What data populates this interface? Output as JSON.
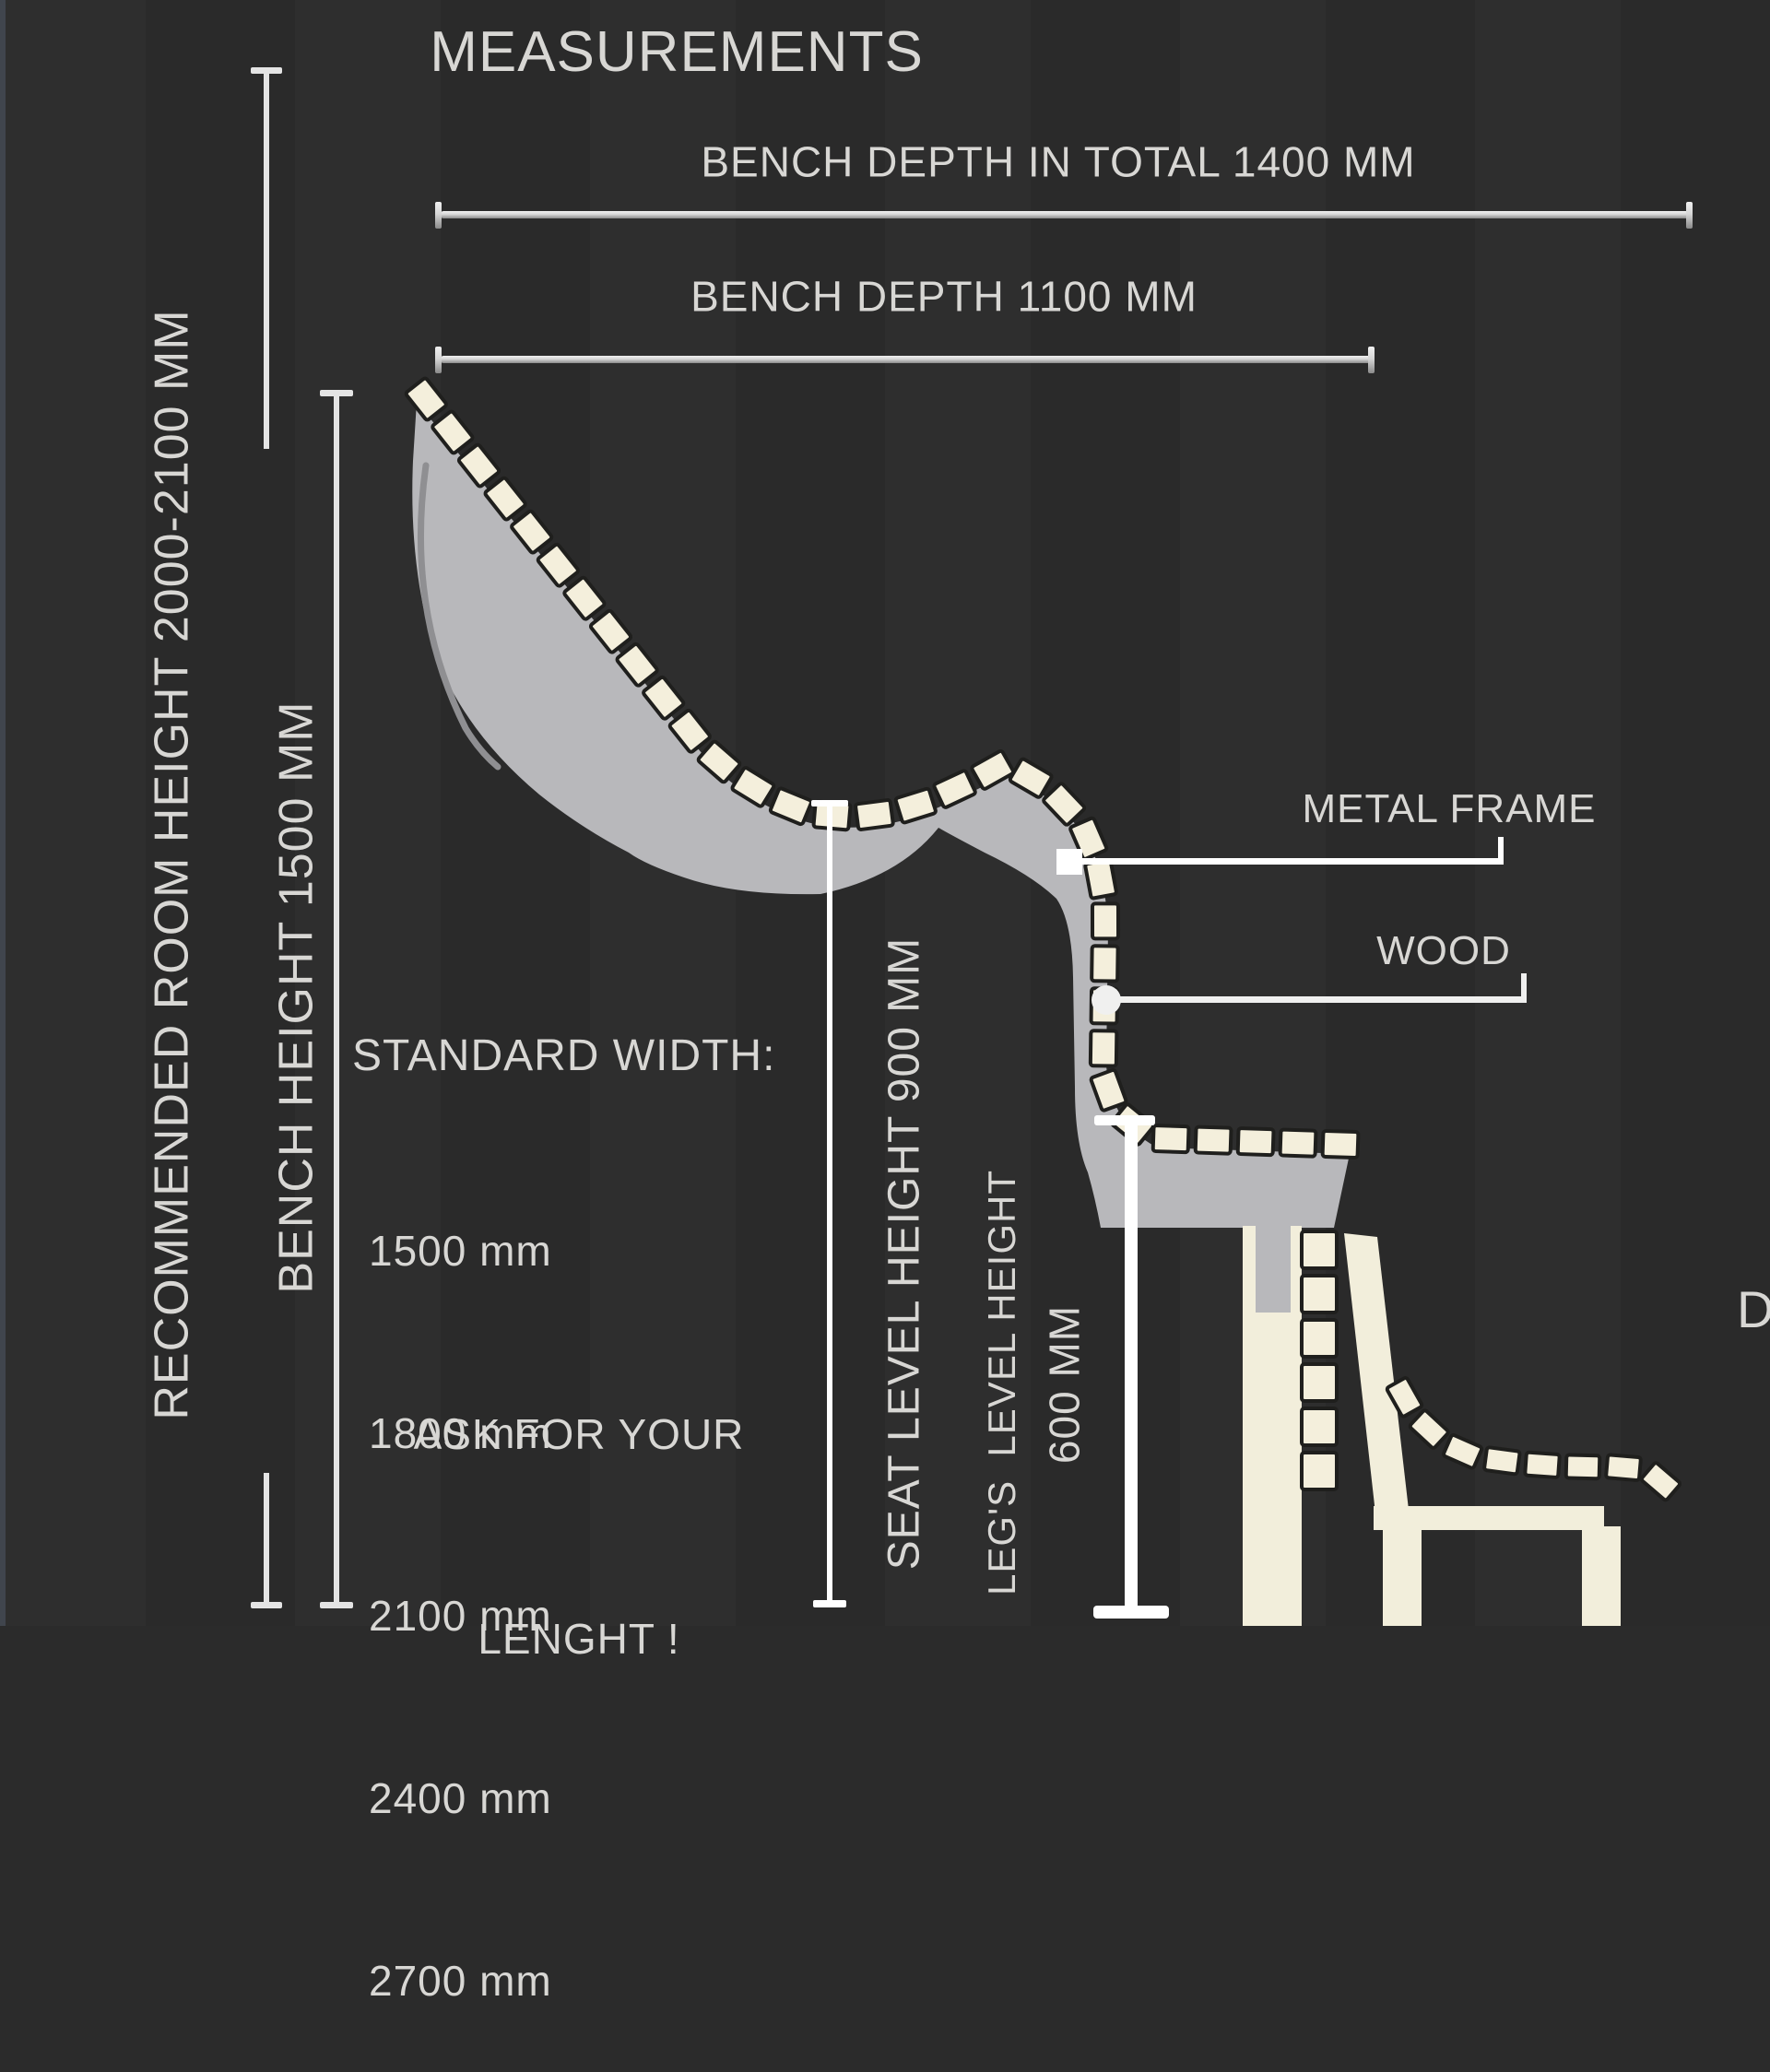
{
  "title": "MEASUREMENTS",
  "dimension_labels": {
    "total_depth": "BENCH DEPTH IN TOTAL 1400 MM",
    "depth": "BENCH DEPTH 1100 MM",
    "room_height": "RECOMMENDED ROOM HEIGHT 2000-2100 MM",
    "bench_height": "BENCH HEIGHT 1500 MM",
    "seat_level": "SEAT LEVEL HEIGHT 900 MM",
    "legs_level": "LEG'S  LEVEL HEIGHT",
    "legs_level_value": "600 MM"
  },
  "material_labels": {
    "metal_frame": "METAL FRAME",
    "wood": "WOOD"
  },
  "standard_width": {
    "heading": "STANDARD WIDTH:",
    "options": [
      "1500 mm",
      "1800 mm",
      "2100 mm",
      "2400 mm",
      "2700 mm"
    ],
    "note_line1": "ASK FOR YOUR",
    "note_line2": "LENGHT !"
  },
  "clipped_text_right_edge": "D",
  "colors": {
    "background": "#2b2b2b",
    "text": "#d8d7d4",
    "wood_slat": "#f4efdc",
    "wood_frame": "#f2eedb",
    "metal_gray": "#b8b8bb",
    "dim_line": "#c9c9c9",
    "white_line": "#ffffff"
  }
}
